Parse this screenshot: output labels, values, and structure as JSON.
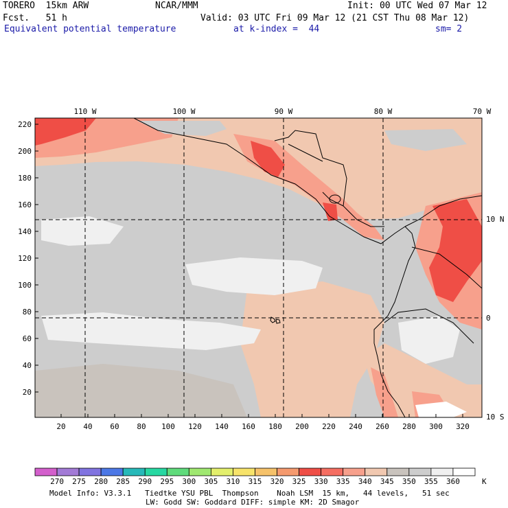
{
  "header": {
    "model": "TORERO  15km ARW",
    "center": "NCAR/MMM",
    "init": "Init: 00 UTC Wed 07 Mar 12",
    "fcst": "Fcst.   51 h",
    "valid": "Valid: 03 UTC Fri 09 Mar 12 (21 CST Thu 08 Mar 12)",
    "field": "Equivalent potential temperature",
    "level": "at k-index =  44",
    "smoothing": "sm= 2"
  },
  "map": {
    "top_lon_labels": [
      "110 W",
      "100 W",
      "90 W",
      "80 W",
      "70 W"
    ],
    "right_lat_labels": [
      "10 N",
      "0",
      "10 S"
    ],
    "y_ticks": [
      "220",
      "200",
      "180",
      "160",
      "140",
      "120",
      "100",
      "80",
      "60",
      "40",
      "20"
    ],
    "x_ticks": [
      "20",
      "40",
      "60",
      "80",
      "100",
      "120",
      "140",
      "160",
      "180",
      "200",
      "220",
      "240",
      "260",
      "280",
      "300",
      "320"
    ]
  },
  "colorbar": {
    "labels": [
      "270",
      "275",
      "280",
      "285",
      "290",
      "295",
      "300",
      "305",
      "310",
      "315",
      "320",
      "325",
      "330",
      "335",
      "340",
      "345",
      "350",
      "355",
      "360"
    ],
    "unit": "K",
    "colors": [
      "#d35fcc",
      "#a27ad6",
      "#8073e0",
      "#4c78e6",
      "#27b9b9",
      "#27d8a2",
      "#5fdb7b",
      "#9fe870",
      "#e3ef6c",
      "#f7e36a",
      "#f6c26a",
      "#f59a6e",
      "#ef4e46",
      "#f56e62",
      "#f7a08c",
      "#f1c8b0",
      "#c9c3bd",
      "#cdcdcd",
      "#f0f0f0",
      "#ffffff"
    ]
  },
  "footer": {
    "line1": "Model Info: V3.3.1   Tiedtke YSU PBL  Thompson    Noah LSM  15 km,   44 levels,   51 sec",
    "line2": "LW: Godd SW: Goddard DIFF: simple KM: 2D Smagor"
  }
}
